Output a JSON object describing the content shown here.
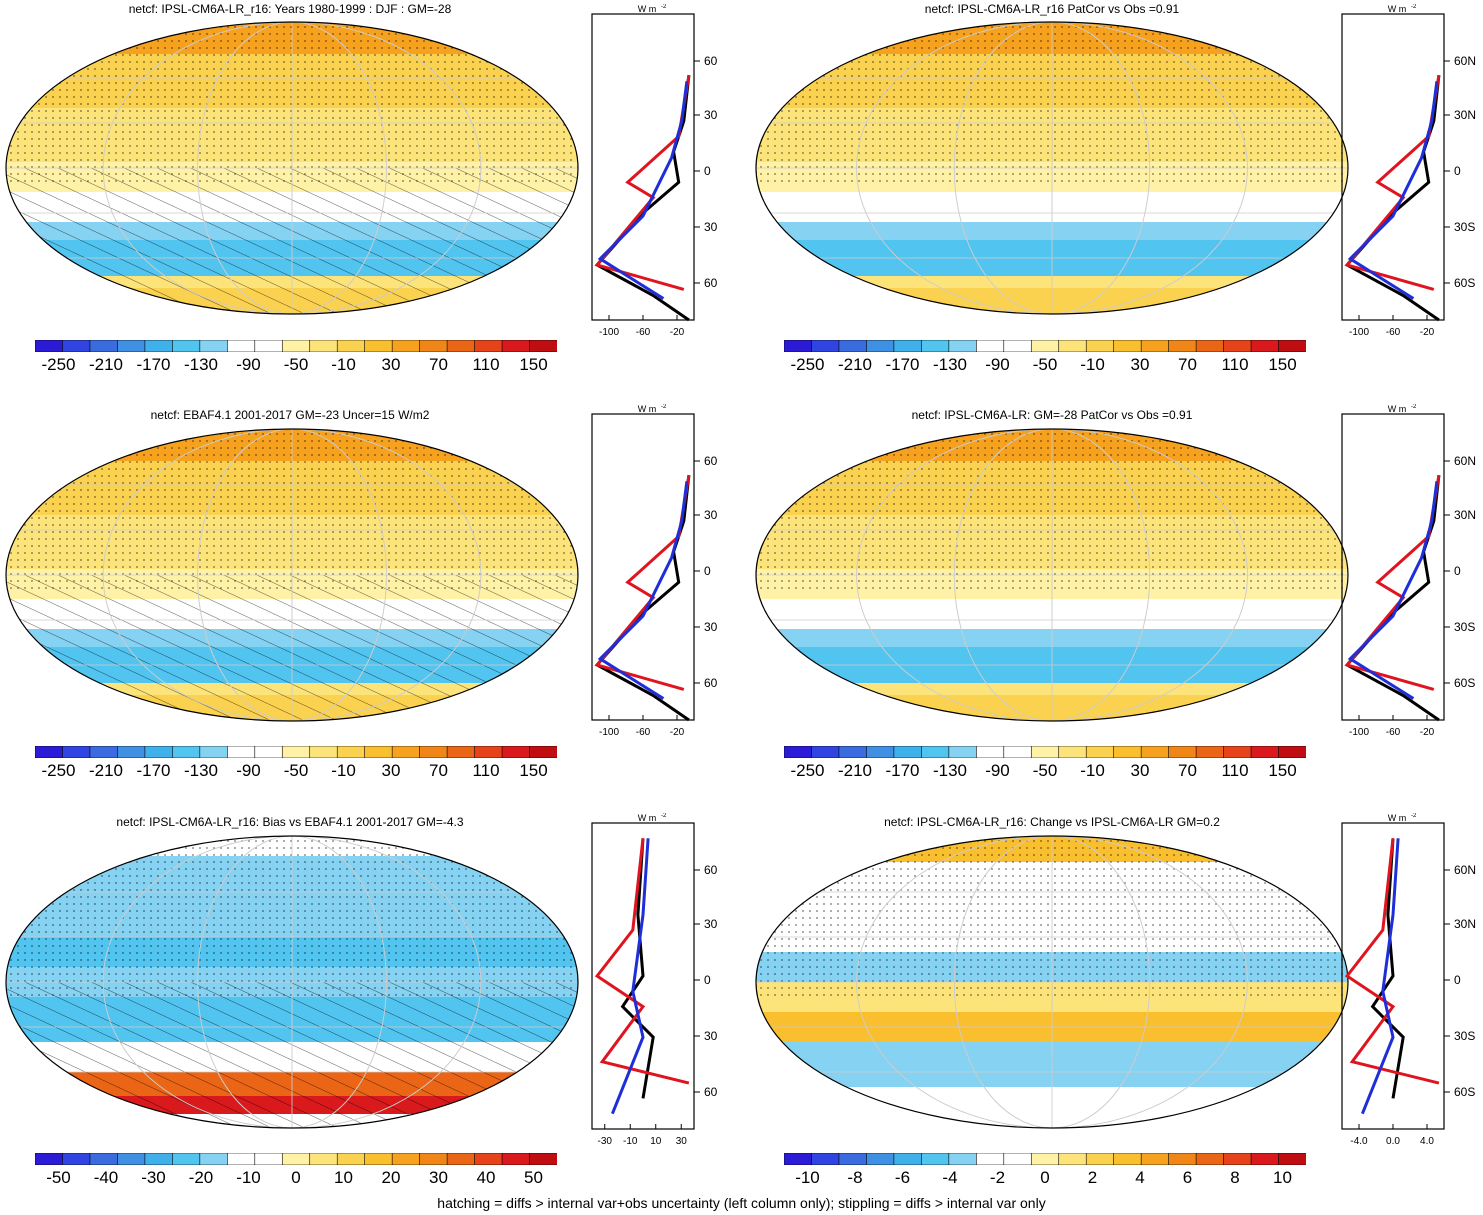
{
  "panels": [
    {
      "id": "p1",
      "title": "netcf: IPSL-CM6A-LR_r16: Years 1980-1999 : DJF : GM=-28",
      "kind": "abs",
      "hatch": true
    },
    {
      "id": "p2",
      "title": "netcf: IPSL-CM6A-LR_r16 PatCor vs Obs =0.91",
      "kind": "abs",
      "hatch": false
    },
    {
      "id": "p3",
      "title": "netcf: EBAF4.1 2001-2017 GM=-23 Uncer=15 W/m2",
      "kind": "abs",
      "hatch": true
    },
    {
      "id": "p4",
      "title": "netcf: IPSL-CM6A-LR: GM=-28 PatCor vs Obs =0.91",
      "kind": "abs",
      "hatch": false
    },
    {
      "id": "p5",
      "title": "netcf: IPSL-CM6A-LR_r16: Bias vs EBAF4.1 2001-2017 GM=-4.3",
      "kind": "bias",
      "hatch": true
    },
    {
      "id": "p6",
      "title": "netcf: IPSL-CM6A-LR_r16: Change vs IPSL-CM6A-LR GM=0.2",
      "kind": "change",
      "hatch": false
    }
  ],
  "colorbars": {
    "abs": {
      "labels": [
        "-250",
        "-210",
        "-170",
        "-130",
        "-90",
        "-50",
        "-10",
        "30",
        "70",
        "110",
        "150"
      ]
    },
    "bias": {
      "labels": [
        "-50",
        "-40",
        "-30",
        "-20",
        "-10",
        "0",
        "10",
        "20",
        "30",
        "40",
        "50"
      ]
    },
    "change": {
      "labels": [
        "-10",
        "-8",
        "-6",
        "-4",
        "-2",
        "0",
        "2",
        "4",
        "6",
        "8",
        "10"
      ]
    }
  },
  "colors": [
    "#2b1bd6",
    "#2f44e0",
    "#3a6bdf",
    "#3f8fe3",
    "#3fb0ea",
    "#52c4f0",
    "#86d2f2",
    "#ffffff",
    "#ffffff",
    "#fff2a6",
    "#fde47a",
    "#fbd24f",
    "#f9bf2e",
    "#f6a21e",
    "#f08518",
    "#eb6517",
    "#e6431a",
    "#d9191b",
    "#c00d12"
  ],
  "profile": {
    "unit_label": "W m",
    "unit_sup": "-2",
    "lat_labels": [
      "60N",
      "30N",
      "0",
      "30S",
      "60S"
    ],
    "x_labels_abs": [
      "-100",
      "-60",
      "-20"
    ],
    "x_labels_bias": [
      "-30",
      "-10",
      "10",
      "30"
    ],
    "x_labels_change": [
      "-4.0",
      "0.0",
      "4.0"
    ]
  },
  "legend_series_colors": {
    "model": "#e0141e",
    "obs": "#1f2fd8",
    "ref": "#000000"
  },
  "footer": "hatching = diffs > internal var+obs uncertainty (left column only); stippling = diffs > internal var only"
}
